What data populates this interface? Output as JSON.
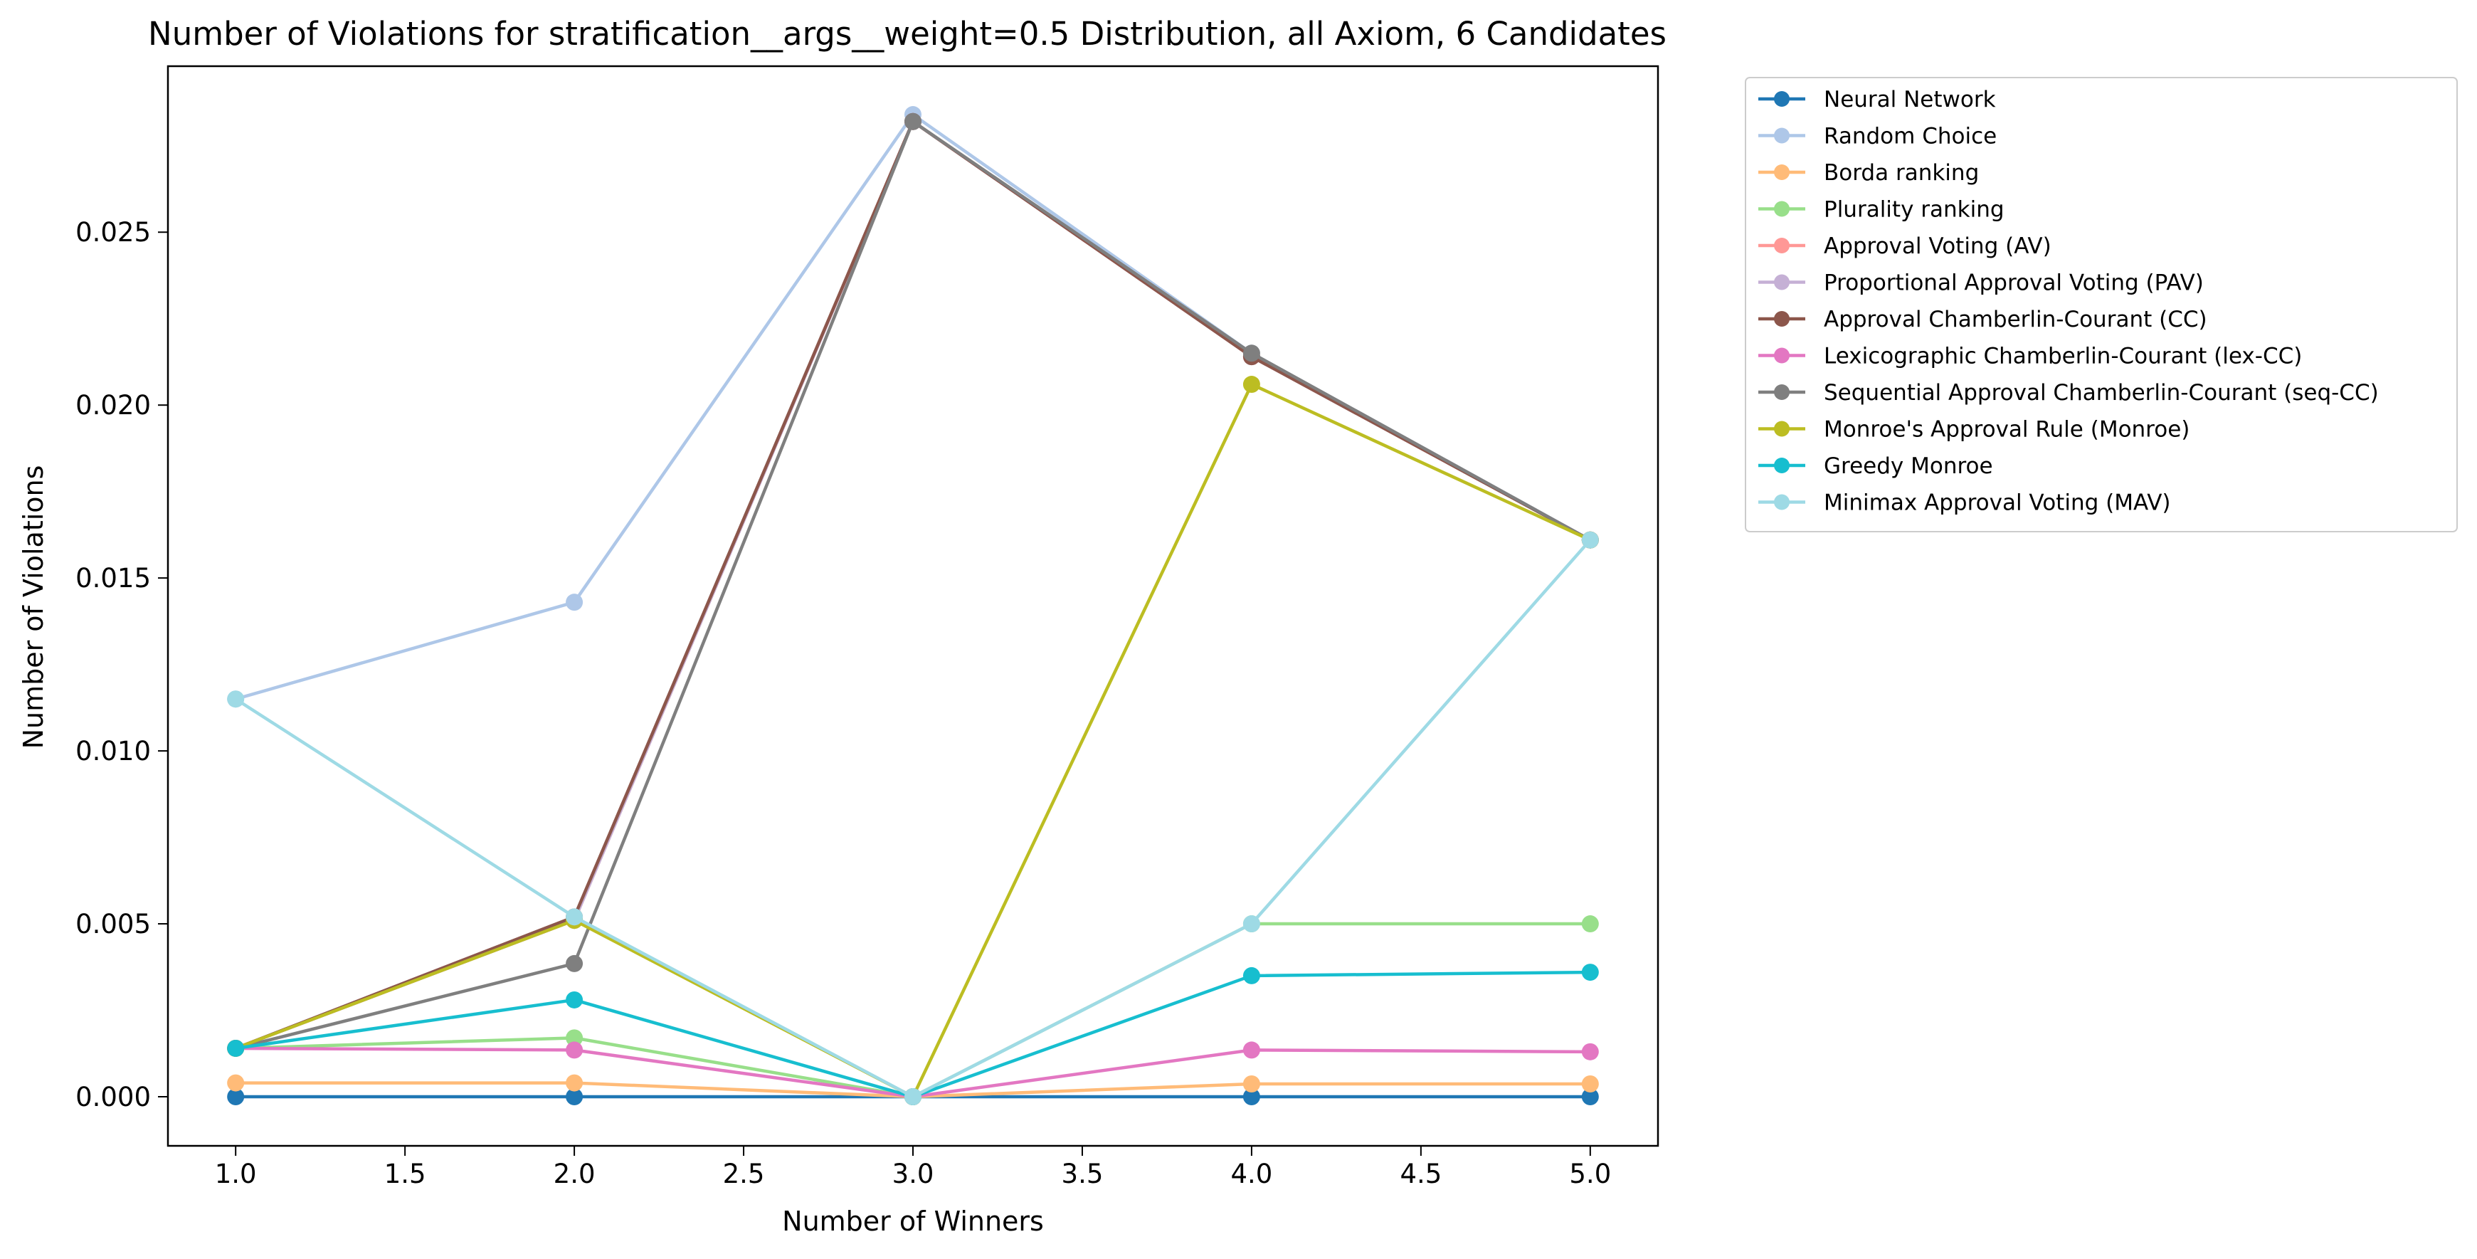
{
  "chart_data": {
    "type": "line",
    "title": "Number of Violations for stratification__args__weight=0.5 Distribution, all Axiom, 6 Candidates",
    "xlabel": "Number of Winners",
    "ylabel": "Number of Violations",
    "xlim": [
      0.8,
      5.2
    ],
    "ylim": [
      -0.00142,
      0.0298
    ],
    "xticks": [
      1.0,
      1.5,
      2.0,
      2.5,
      3.0,
      3.5,
      4.0,
      4.5,
      5.0
    ],
    "xtick_labels": [
      "1.0",
      "1.5",
      "2.0",
      "2.5",
      "3.0",
      "3.5",
      "4.0",
      "4.5",
      "5.0"
    ],
    "yticks": [
      0.0,
      0.005,
      0.01,
      0.015,
      0.02,
      0.025
    ],
    "ytick_labels": [
      "0.000",
      "0.005",
      "0.010",
      "0.015",
      "0.020",
      "0.025"
    ],
    "grid": false,
    "legend_position": "outside-upper-right",
    "x": [
      1,
      2,
      3,
      4,
      5
    ],
    "series": [
      {
        "name": "Neural Network",
        "color": "#1f77b4",
        "values": [
          0.0,
          0.0,
          0.0,
          0.0,
          0.0
        ]
      },
      {
        "name": "Random Choice",
        "color": "#aec7e8",
        "values": [
          0.0115,
          0.0143,
          0.0284,
          0.0215,
          0.0161
        ]
      },
      {
        "name": "Borda ranking",
        "color": "#ffbb78",
        "values": [
          0.0004,
          0.0004,
          0.0,
          0.00037,
          0.00037
        ]
      },
      {
        "name": "Plurality ranking",
        "color": "#98df8a",
        "values": [
          0.0014,
          0.0017,
          0.0,
          0.005,
          0.005
        ]
      },
      {
        "name": "Approval Voting (AV)",
        "color": "#ff9896",
        "values": [
          0.0014,
          0.0051,
          0.0282,
          0.0214,
          0.0161
        ]
      },
      {
        "name": "Proportional Approval Voting (PAV)",
        "color": "#c5b0d5",
        "values": [
          0.0014,
          0.0051,
          0.0282,
          0.0214,
          0.0161
        ]
      },
      {
        "name": "Approval Chamberlin-Courant (CC)",
        "color": "#8c564b",
        "values": [
          0.0014,
          0.0052,
          0.0282,
          0.0214,
          0.0161
        ]
      },
      {
        "name": "Lexicographic Chamberlin-Courant (lex-CC)",
        "color": "#e377c2",
        "values": [
          0.0014,
          0.00135,
          0.0,
          0.00135,
          0.0013
        ]
      },
      {
        "name": "Sequential Approval Chamberlin-Courant (seq-CC)",
        "color": "#7f7f7f",
        "values": [
          0.0014,
          0.00385,
          0.0282,
          0.0215,
          0.0161
        ]
      },
      {
        "name": "Monroe's Approval Rule (Monroe)",
        "color": "#bcbd22",
        "values": [
          0.0014,
          0.0051,
          0.0,
          0.0206,
          0.0161
        ]
      },
      {
        "name": "Greedy Monroe",
        "color": "#17becf",
        "values": [
          0.0014,
          0.0028,
          0.0,
          0.0035,
          0.0036
        ]
      },
      {
        "name": "Minimax Approval Voting (MAV)",
        "color": "#9edae5",
        "values": [
          0.0115,
          0.0052,
          0.0,
          0.005,
          0.0161
        ]
      }
    ]
  }
}
